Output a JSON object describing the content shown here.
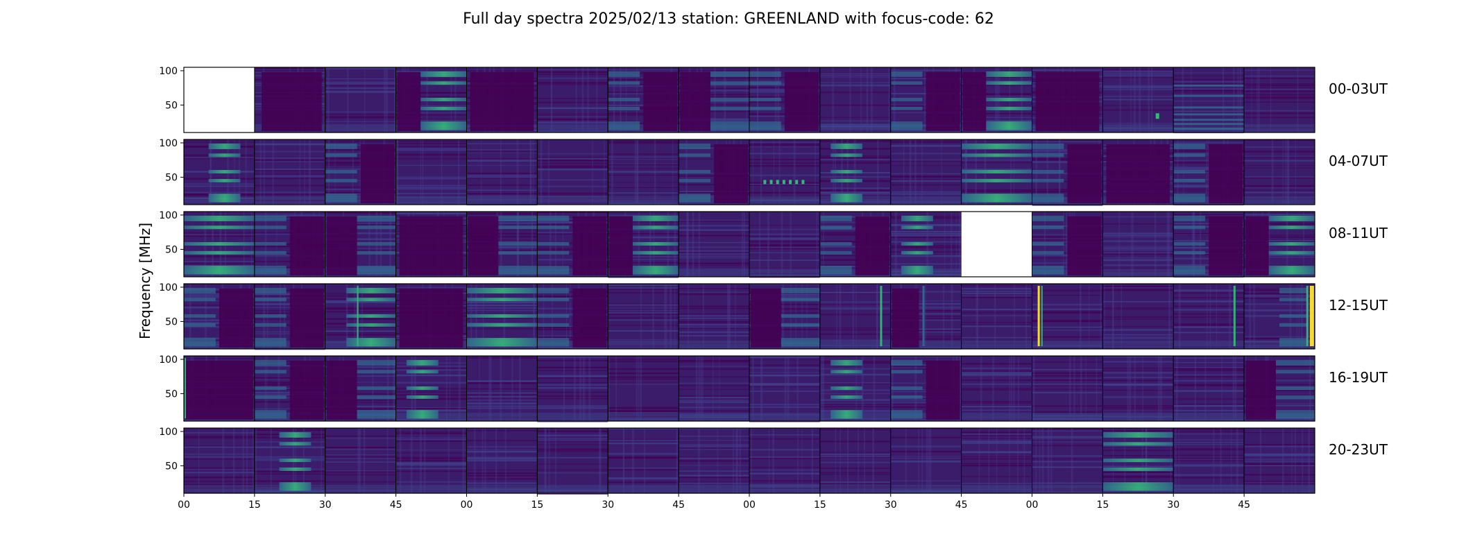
{
  "chart_data": {
    "type": "heatmap",
    "title": "Full day spectra 2025/02/13 station: GREENLAND with focus-code: 62",
    "ylabel": "Frequency [MHz]",
    "xlabel": "",
    "y_ticks": [
      50,
      100
    ],
    "ylim": [
      10,
      105
    ],
    "x_ticks": [
      "00",
      "15",
      "30",
      "45",
      "00",
      "15",
      "30",
      "45",
      "00",
      "15",
      "30",
      "45",
      "00",
      "15",
      "30",
      "45"
    ],
    "colormap": "viridis",
    "colors": {
      "low": "#440154",
      "mid": "#31688e",
      "high": "#35b779",
      "peak": "#fde725",
      "background": "#3b1c6b"
    },
    "rows": [
      {
        "label": "00-03UT",
        "panels": [
          "none",
          "pattern-low",
          "noisy",
          "band-high-right",
          "dark",
          "noisy",
          "band-left",
          "band-right",
          "band-left",
          "noisy",
          "band-left",
          "band-high-right",
          "dark",
          "noisy-spots",
          "lines-dense",
          "noisy"
        ]
      },
      {
        "label": "04-07UT",
        "panels": [
          "band-right-patchy",
          "noisy",
          "band-left",
          "noisy",
          "noisy",
          "noisy",
          "noisy",
          "band-left",
          "dots-mid",
          "band-mid",
          "noisy",
          "band-high-full",
          "band-left",
          "dark",
          "band-left",
          "noisy"
        ]
      },
      {
        "label": "08-11UT",
        "panels": [
          "band-high-full",
          "band-left",
          "band-right",
          "dark",
          "band-right",
          "band-left",
          "band-high-right",
          "noisy",
          "noisy",
          "band-left",
          "band-mid",
          "none",
          "band-left",
          "noisy",
          "band-left",
          "band-high-right"
        ]
      },
      {
        "label": "12-15UT",
        "panels": [
          "band-left",
          "band-left",
          "band-right-spike",
          "dark",
          "band-high-full",
          "band-left",
          "noisy",
          "noisy",
          "band-right",
          "spike-mid",
          "spike-left",
          "noisy",
          "spike-left-strong",
          "noisy",
          "spike-mid",
          "spike-right-strong"
        ]
      },
      {
        "label": "16-19UT",
        "panels": [
          "dark-edge",
          "band-left",
          "band-right",
          "band-mid",
          "noisy",
          "noisy",
          "noisy",
          "noisy",
          "noisy",
          "band-mid",
          "band-left",
          "noisy",
          "noisy",
          "noisy",
          "noisy",
          "band-right"
        ]
      },
      {
        "label": "20-23UT",
        "panels": [
          "noisy",
          "band-right-patchy",
          "noisy",
          "noisy",
          "noisy",
          "noisy",
          "noisy",
          "noisy",
          "noisy",
          "noisy",
          "noisy",
          "noisy",
          "noisy",
          "band-high-full",
          "noisy",
          "noisy"
        ]
      }
    ],
    "grid": false,
    "legend": "none"
  }
}
